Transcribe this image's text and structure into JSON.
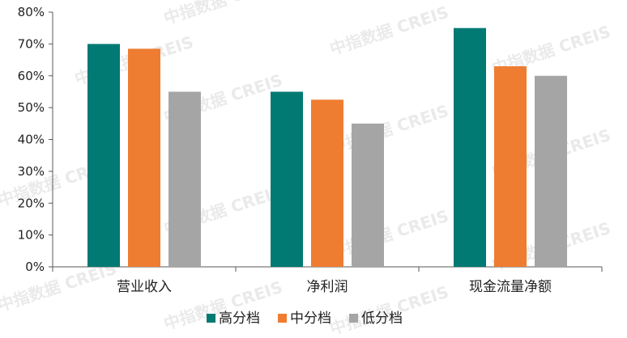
{
  "chart_data": {
    "type": "bar",
    "categories": [
      "营业收入",
      "净利润",
      "现金流量净额"
    ],
    "series": [
      {
        "name": "高分档",
        "color": "#007a73",
        "values": [
          70,
          55,
          75
        ]
      },
      {
        "name": "中分档",
        "color": "#ee7d31",
        "values": [
          68.5,
          52.5,
          63
        ]
      },
      {
        "name": "低分档",
        "color": "#a5a5a5",
        "values": [
          55,
          45,
          60
        ]
      }
    ],
    "ylim": [
      0,
      80
    ],
    "yticks": [
      0,
      10,
      20,
      30,
      40,
      50,
      60,
      70,
      80
    ],
    "y_unit": "%",
    "legend_position": "bottom",
    "grid": false,
    "watermark": "中指数据 CREIS"
  }
}
